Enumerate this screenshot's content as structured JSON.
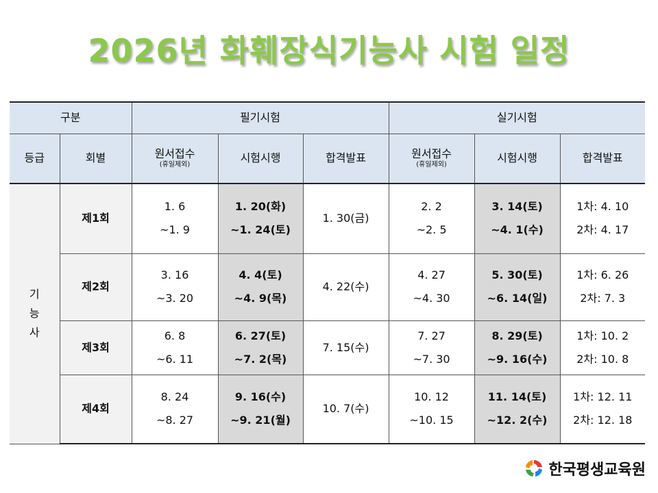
{
  "title": "2026년 화훼장식기능사 시험 일정",
  "header": {
    "category": "구분",
    "written": "필기시험",
    "practical": "실기시험",
    "grade": "등급",
    "round": "회별",
    "apply": "원서접수",
    "apply_note": "(휴일제외)",
    "exam": "시험시행",
    "result": "합격발표"
  },
  "grade_label": [
    "기",
    "능",
    "사"
  ],
  "rows": [
    {
      "round": "제1회",
      "w_apply": [
        "1. 6",
        "~1. 9"
      ],
      "w_exam": [
        "1. 20(화)",
        "~1. 24(토)"
      ],
      "w_result": "1. 30(금)",
      "p_apply": [
        "2. 2",
        "~2. 5"
      ],
      "p_exam": [
        "3. 14(토)",
        "~4. 1(수)"
      ],
      "p_result": [
        "1차: 4. 10",
        "2차: 4. 17"
      ]
    },
    {
      "round": "제2회",
      "w_apply": [
        "3. 16",
        "~3. 20"
      ],
      "w_exam": [
        "4. 4(토)",
        "~4. 9(목)"
      ],
      "w_result": "4. 22(수)",
      "p_apply": [
        "4. 27",
        "~4. 30"
      ],
      "p_exam": [
        "5. 30(토)",
        "~6. 14(일)"
      ],
      "p_result": [
        "1차: 6. 26",
        "2차: 7. 3"
      ]
    },
    {
      "round": "제3회",
      "w_apply": [
        "6. 8",
        "~6. 11"
      ],
      "w_exam": [
        "6. 27(토)",
        "~7. 2(목)"
      ],
      "w_result": "7. 15(수)",
      "p_apply": [
        "7. 27",
        "~7. 30"
      ],
      "p_exam": [
        "8. 29(토)",
        "~9. 16(수)"
      ],
      "p_result": [
        "1차: 10. 2",
        "2차: 10. 8"
      ]
    },
    {
      "round": "제4회",
      "w_apply": [
        "8. 24",
        "~8. 27"
      ],
      "w_exam": [
        "9. 16(수)",
        "~9. 21(월)"
      ],
      "w_result": "10. 7(수)",
      "p_apply": [
        "10. 12",
        "~10. 15"
      ],
      "p_exam": [
        "11. 14(토)",
        "~12. 2(수)"
      ],
      "p_result": [
        "1차: 12. 11",
        "2차: 12. 18"
      ]
    }
  ],
  "logo": "한국평생교육원"
}
